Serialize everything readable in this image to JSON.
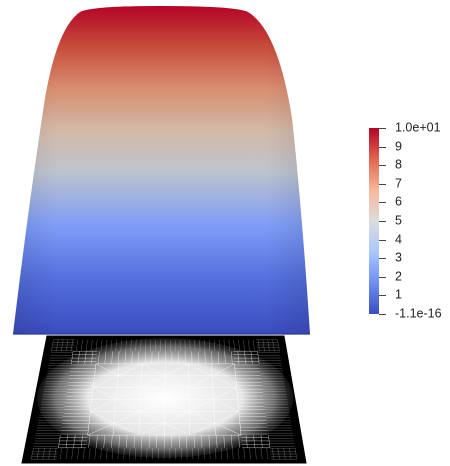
{
  "scalar_bar": {
    "range": [
      -1.1e-16,
      10
    ],
    "tick_labels": [
      {
        "value": 10,
        "label": "1.0e+01"
      },
      {
        "value": 9,
        "label": "9"
      },
      {
        "value": 8,
        "label": "8"
      },
      {
        "value": 7,
        "label": "7"
      },
      {
        "value": 6,
        "label": "6"
      },
      {
        "value": 5,
        "label": "5"
      },
      {
        "value": 4,
        "label": "4"
      },
      {
        "value": 3,
        "label": "3"
      },
      {
        "value": 2,
        "label": "2"
      },
      {
        "value": 1,
        "label": "1"
      },
      {
        "value": -1.1e-16,
        "label": "-1.1e-16"
      }
    ],
    "colormap": [
      "#3b4cc0",
      "#6d8ff1",
      "#aac7fd",
      "#dddcdc",
      "#f6b89c",
      "#e0654f",
      "#b40426"
    ]
  },
  "scene": {
    "surface_colormap": "cool-to-warm",
    "mesh_background": "#000000",
    "mesh_line_color": "#ffffff"
  }
}
